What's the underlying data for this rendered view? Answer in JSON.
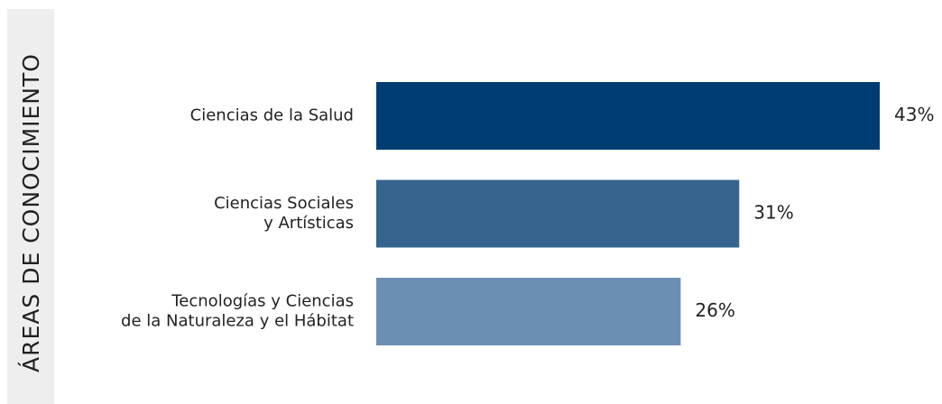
{
  "chart_data": {
    "type": "bar",
    "orientation": "horizontal",
    "y_axis_label": "ÁREAS DE CONOCIMIENTO",
    "categories": [
      "Ciencias de la Salud",
      "Ciencias Sociales\ny Artísticas",
      "Tecnologías y Ciencias\nde la Naturaleza y el Hábitat"
    ],
    "values": [
      43,
      31,
      26
    ],
    "value_labels": [
      "43%",
      "31%",
      "26%"
    ],
    "colors": [
      "#003d73",
      "#36648f",
      "#6a8fb3"
    ]
  }
}
